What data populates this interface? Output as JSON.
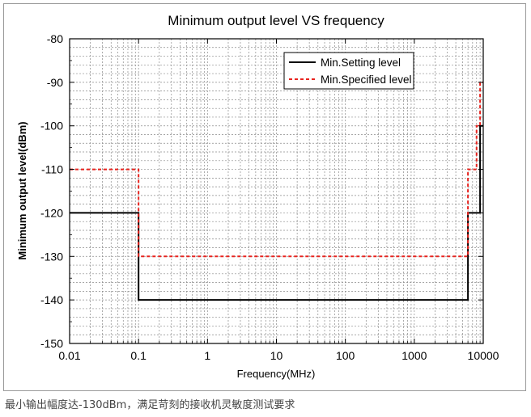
{
  "chart_data": {
    "type": "line",
    "title": "Minimum output level VS frequency",
    "xlabel": "Frequency(MHz)",
    "ylabel": "Minimum output level(dBm)",
    "xscale": "log",
    "xlim": [
      0.01,
      10000
    ],
    "ylim": [
      -150,
      -80
    ],
    "x_ticks": [
      0.01,
      0.1,
      1,
      10,
      100,
      1000,
      10000
    ],
    "x_tick_labels": [
      "0.01",
      "0.1",
      "1",
      "10",
      "100",
      "1000",
      "10000"
    ],
    "y_ticks": [
      -150,
      -140,
      -130,
      -120,
      -110,
      -100,
      -90,
      -80
    ],
    "y_tick_labels": [
      "-150",
      "-140",
      "-130",
      "-120",
      "-110",
      "-100",
      "-90",
      "-80"
    ],
    "grid": true,
    "legend_position": "top-right",
    "series": [
      {
        "name": "Min.Setting level",
        "color": "#000000",
        "style": "solid",
        "x": [
          0.01,
          0.1,
          0.1,
          6000,
          6000,
          9000,
          9000,
          10000
        ],
        "y": [
          -120,
          -120,
          -140,
          -140,
          -120,
          -120,
          -100,
          -100
        ]
      },
      {
        "name": "Min.Specified level",
        "color": "#e8231e",
        "style": "dashed",
        "x": [
          0.01,
          0.1,
          0.1,
          6000,
          6000,
          8000,
          8000,
          9000,
          9000,
          10000
        ],
        "y": [
          -110,
          -110,
          -130,
          -130,
          -110,
          -110,
          -100,
          -100,
          -90,
          -90
        ]
      }
    ]
  },
  "caption": "最小输出幅度达-130dBm，满足苛刻的接收机灵敏度测试要求"
}
